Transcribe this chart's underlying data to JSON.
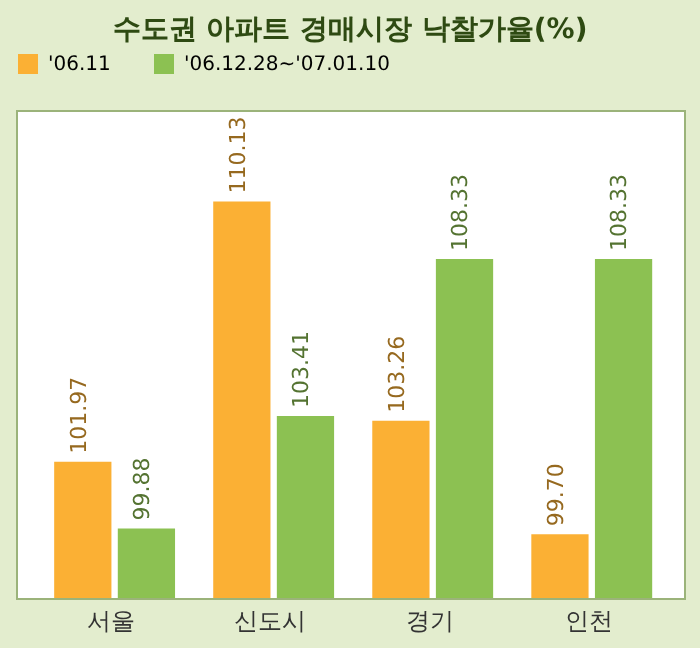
{
  "chart_data": {
    "type": "bar",
    "title": "수도권 아파트 경매시장 낙찰가율(%)",
    "categories": [
      "서울",
      "신도시",
      "경기",
      "인천"
    ],
    "series": [
      {
        "name": "'06.11",
        "color": "#fbb034",
        "values": [
          101.97,
          110.13,
          103.26,
          99.7
        ],
        "value_labels": [
          "101.97",
          "110.13",
          "103.26",
          "99.70"
        ]
      },
      {
        "name": "'06.12.28~'07.01.10",
        "color": "#8cc152",
        "values": [
          99.88,
          103.41,
          108.33,
          108.33
        ],
        "value_labels": [
          "99.88",
          "103.41",
          "108.33",
          "108.33"
        ]
      }
    ],
    "ylim": [
      97.7,
      113
    ],
    "grid": false,
    "legend": "top left",
    "tick_labels": "x"
  }
}
